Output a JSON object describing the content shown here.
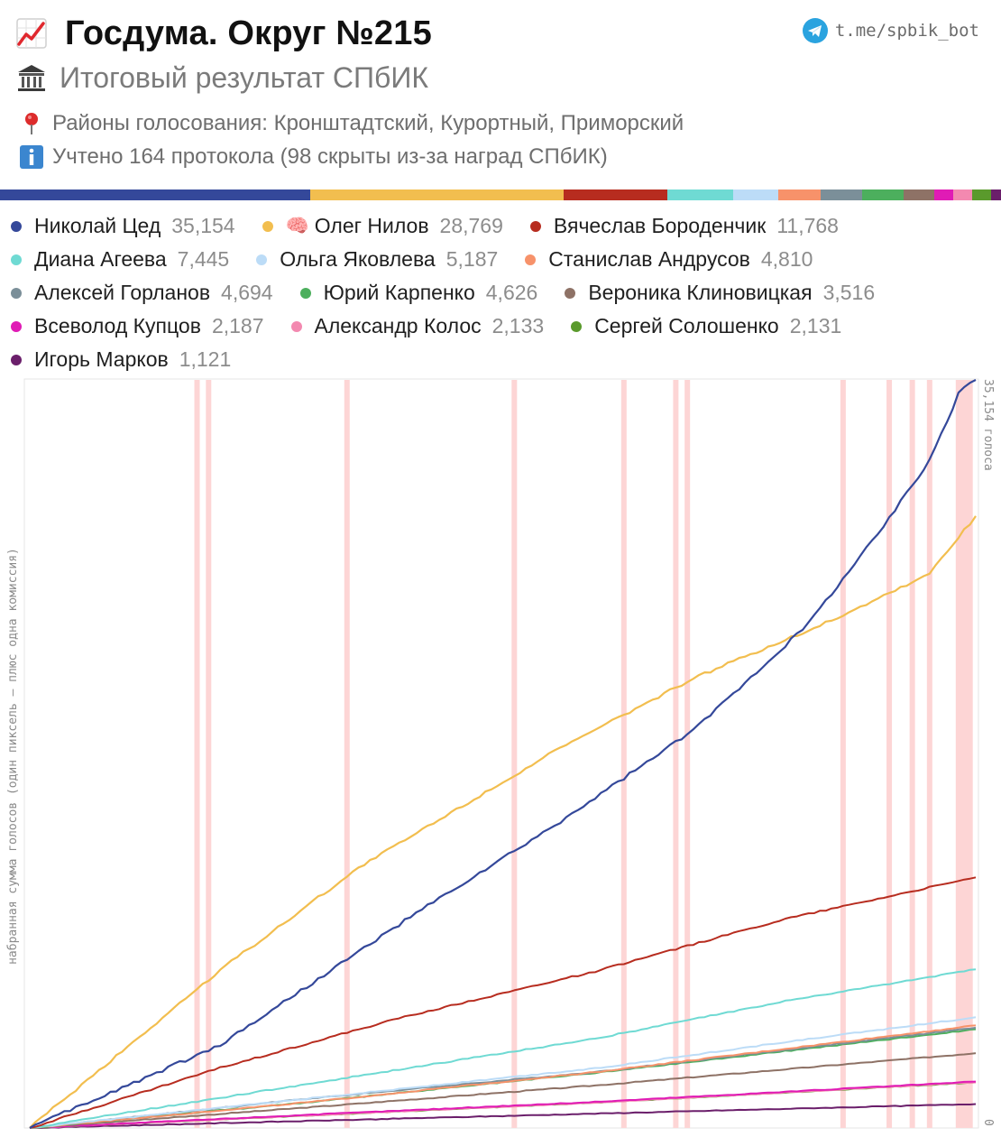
{
  "header": {
    "title": "Госдума. Округ №215",
    "subtitle": "Итоговый результат СПбИК",
    "districts": "Районы голосования: Кронштадтский, Курортный, Приморский",
    "protocols": "Учтено 164 протокола (98 скрыты из-за наград СПбИК)",
    "telegram": "t.me/spbik_bot",
    "title_icon": "chart-increasing-icon",
    "subtitle_icon": "classical-building-icon",
    "districts_icon": "round-pushpin-icon",
    "protocols_icon": "information-icon",
    "telegram_icon": "telegram-icon"
  },
  "candidates": [
    {
      "name": "Николай Цед",
      "votes": "35,154",
      "color": "#34489a"
    },
    {
      "name": "Олег Нилов",
      "votes": "28,769",
      "color": "#f2be4f",
      "icon": "brain-icon"
    },
    {
      "name": "Вячеслав Бороденчик",
      "votes": "11,768",
      "color": "#b72c1f"
    },
    {
      "name": "Диана Агеева",
      "votes": "7,445",
      "color": "#6fdad3"
    },
    {
      "name": "Ольга Яковлева",
      "votes": "5,187",
      "color": "#bcdcf7"
    },
    {
      "name": "Станислав Андрусов",
      "votes": "4,810",
      "color": "#f7926a"
    },
    {
      "name": "Алексей Горланов",
      "votes": "4,694",
      "color": "#7b8f99"
    },
    {
      "name": "Юрий Карпенко",
      "votes": "4,626",
      "color": "#4caf5d"
    },
    {
      "name": "Вероника Клиновицкая",
      "votes": "3,516",
      "color": "#8e7266"
    },
    {
      "name": "Всеволод Купцов",
      "votes": "2,187",
      "color": "#e01bb5"
    },
    {
      "name": "Александр Колос",
      "votes": "2,133",
      "color": "#f389b0"
    },
    {
      "name": "Сергей Солошенко",
      "votes": "2,131",
      "color": "#5a9a2c"
    },
    {
      "name": "Игорь Марков",
      "votes": "1,121",
      "color": "#6b1f6b"
    }
  ],
  "chart_data": {
    "type": "line",
    "ylabel": "набранная сумма голосов (один пиксель – плюс одна комиссия)",
    "right_top_label": "35,154 голоса",
    "right_bottom_label": "0",
    "ylim": [
      0,
      35154
    ],
    "protocols_total": 164,
    "hidden_protocols": 98,
    "highlighted_commissions": [
      29,
      31,
      55,
      84,
      103,
      112,
      114,
      141,
      149,
      153,
      156,
      161,
      163
    ],
    "series": [
      {
        "name": "Николай Цед",
        "final": 35154,
        "color": "#34489a",
        "profile": [
          [
            0,
            0
          ],
          [
            0.2,
            0.11
          ],
          [
            0.4,
            0.28
          ],
          [
            0.55,
            0.4
          ],
          [
            0.7,
            0.53
          ],
          [
            0.82,
            0.67
          ],
          [
            0.9,
            0.8
          ],
          [
            0.95,
            0.89
          ],
          [
            0.985,
            0.99
          ],
          [
            1,
            1
          ]
        ]
      },
      {
        "name": "Олег Нилов",
        "final": 28769,
        "color": "#f2be4f",
        "profile": [
          [
            0,
            0
          ],
          [
            0.2,
            0.21
          ],
          [
            0.35,
            0.35
          ],
          [
            0.55,
            0.5
          ],
          [
            0.7,
            0.6
          ],
          [
            0.85,
            0.68
          ],
          [
            0.95,
            0.74
          ],
          [
            1,
            0.818
          ]
        ]
      },
      {
        "name": "Вячеслав Бороденчик",
        "final": 11768,
        "color": "#b72c1f",
        "profile": [
          [
            0,
            0
          ],
          [
            0.2,
            0.08
          ],
          [
            0.4,
            0.15
          ],
          [
            0.6,
            0.21
          ],
          [
            0.8,
            0.28
          ],
          [
            1,
            0.335
          ]
        ]
      },
      {
        "name": "Диана Агеева",
        "final": 7445,
        "color": "#6fdad3",
        "profile": [
          [
            0,
            0
          ],
          [
            0.3,
            0.06
          ],
          [
            0.6,
            0.12
          ],
          [
            0.8,
            0.17
          ],
          [
            1,
            0.212
          ]
        ]
      },
      {
        "name": "Ольга Яковлева",
        "final": 5187,
        "color": "#bcdcf7",
        "profile": [
          [
            0,
            0
          ],
          [
            0.3,
            0.04
          ],
          [
            0.6,
            0.08
          ],
          [
            0.8,
            0.115
          ],
          [
            1,
            0.148
          ]
        ]
      },
      {
        "name": "Станислав Андрусов",
        "final": 4810,
        "color": "#f7926a",
        "profile": [
          [
            0,
            0
          ],
          [
            0.3,
            0.035
          ],
          [
            0.6,
            0.075
          ],
          [
            1,
            0.137
          ]
        ]
      },
      {
        "name": "Алексей Горланов",
        "final": 4694,
        "color": "#7b8f99",
        "profile": [
          [
            0,
            0
          ],
          [
            0.3,
            0.04
          ],
          [
            0.6,
            0.075
          ],
          [
            1,
            0.134
          ]
        ]
      },
      {
        "name": "Юрий Карпенко",
        "final": 4626,
        "color": "#4caf5d",
        "profile": [
          [
            0,
            0
          ],
          [
            0.3,
            0.035
          ],
          [
            0.6,
            0.074
          ],
          [
            1,
            0.132
          ]
        ]
      },
      {
        "name": "Вероника Клиновицкая",
        "final": 3516,
        "color": "#8e7266",
        "profile": [
          [
            0,
            0
          ],
          [
            0.3,
            0.028
          ],
          [
            0.6,
            0.057
          ],
          [
            1,
            0.1
          ]
        ]
      },
      {
        "name": "Всеволод Купцов",
        "final": 2187,
        "color": "#e01bb5",
        "profile": [
          [
            0,
            0
          ],
          [
            0.3,
            0.018
          ],
          [
            0.6,
            0.035
          ],
          [
            1,
            0.062
          ]
        ]
      },
      {
        "name": "Александр Колос",
        "final": 2133,
        "color": "#f389b0",
        "profile": [
          [
            0,
            0
          ],
          [
            0.3,
            0.017
          ],
          [
            0.6,
            0.034
          ],
          [
            1,
            0.061
          ]
        ]
      },
      {
        "name": "Сергей Солошенко",
        "final": 2131,
        "color": "#5a9a2c",
        "profile": [
          [
            0,
            0
          ],
          [
            0.3,
            0.017
          ],
          [
            0.6,
            0.034
          ],
          [
            1,
            0.061
          ]
        ]
      },
      {
        "name": "Игорь Марков",
        "final": 1121,
        "color": "#6b1f6b",
        "profile": [
          [
            0,
            0
          ],
          [
            0.5,
            0.016
          ],
          [
            1,
            0.032
          ]
        ]
      }
    ]
  }
}
